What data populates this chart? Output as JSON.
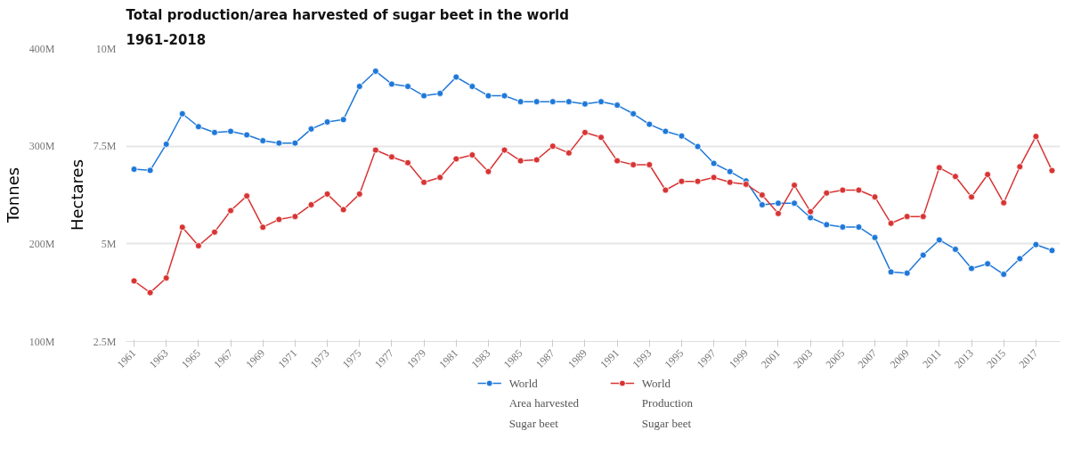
{
  "chart_data": {
    "type": "line",
    "title": "Total production/area harvested of sugar beet in the world",
    "subtitle": "1961-2018",
    "ylabel": "Tonnes",
    "y2label": "Hectares",
    "x": [
      1961,
      1962,
      1963,
      1964,
      1965,
      1966,
      1967,
      1968,
      1969,
      1970,
      1971,
      1972,
      1973,
      1974,
      1975,
      1976,
      1977,
      1978,
      1979,
      1980,
      1981,
      1982,
      1983,
      1984,
      1985,
      1986,
      1987,
      1988,
      1989,
      1990,
      1991,
      1992,
      1993,
      1994,
      1995,
      1996,
      1997,
      1998,
      1999,
      2000,
      2001,
      2002,
      2003,
      2004,
      2005,
      2006,
      2007,
      2008,
      2009,
      2010,
      2011,
      2012,
      2013,
      2014,
      2015,
      2016,
      2017,
      2018
    ],
    "series": [
      {
        "name": "World\nArea harvested\nSugar beet",
        "color": "#1f78d8",
        "axis": "y2",
        "values": [
          6.91,
          6.88,
          7.55,
          8.33,
          8.0,
          7.85,
          7.88,
          7.79,
          7.64,
          7.58,
          7.58,
          7.94,
          8.12,
          8.18,
          9.03,
          9.42,
          9.09,
          9.03,
          8.79,
          8.85,
          9.27,
          9.03,
          8.79,
          8.79,
          8.64,
          8.64,
          8.64,
          8.64,
          8.58,
          8.64,
          8.55,
          8.33,
          8.06,
          7.88,
          7.76,
          7.49,
          7.06,
          6.85,
          6.61,
          6.0,
          6.04,
          6.04,
          5.67,
          5.49,
          5.43,
          5.43,
          5.16,
          4.28,
          4.25,
          4.71,
          5.1,
          4.86,
          4.37,
          4.49,
          4.22,
          4.62,
          4.98,
          4.83
        ]
      },
      {
        "name": "World\nProduction\nSugar beet",
        "color": "#d83434",
        "axis": "y",
        "values": [
          162,
          150,
          165,
          217,
          198,
          212,
          234,
          249,
          217,
          225,
          228,
          240,
          251,
          235,
          251,
          296,
          289,
          283,
          263,
          268,
          287,
          291,
          274,
          296,
          285,
          286,
          300,
          293,
          314,
          309,
          285,
          281,
          281,
          255,
          264,
          264,
          268,
          263,
          261,
          250,
          231,
          260,
          233,
          252,
          255,
          255,
          248,
          221,
          228,
          228,
          278,
          269,
          248,
          271,
          242,
          279,
          310,
          275
        ]
      }
    ],
    "xlim": [
      1960.5,
      2018.5
    ],
    "xticks": [
      1961,
      1963,
      1965,
      1967,
      1969,
      1971,
      1973,
      1975,
      1977,
      1979,
      1981,
      1983,
      1985,
      1987,
      1989,
      1991,
      1993,
      1995,
      1997,
      1999,
      2001,
      2003,
      2005,
      2007,
      2009,
      2011,
      2013,
      2015,
      2017
    ],
    "ylim": [
      100,
      400
    ],
    "yticks": [
      {
        "value": 100,
        "label": "100M"
      },
      {
        "value": 200,
        "label": "200M"
      },
      {
        "value": 300,
        "label": "300M"
      },
      {
        "value": 400,
        "label": "400M"
      }
    ],
    "y2lim": [
      2.5,
      10
    ],
    "y2ticks": [
      {
        "value": 2.5,
        "label": "2.5M"
      },
      {
        "value": 5,
        "label": "5M"
      },
      {
        "value": 7.5,
        "label": "7.5M"
      },
      {
        "value": 10,
        "label": "10M"
      }
    ],
    "grid": "y",
    "legend": "bottom",
    "marker": "circle",
    "line_style": "solid"
  }
}
